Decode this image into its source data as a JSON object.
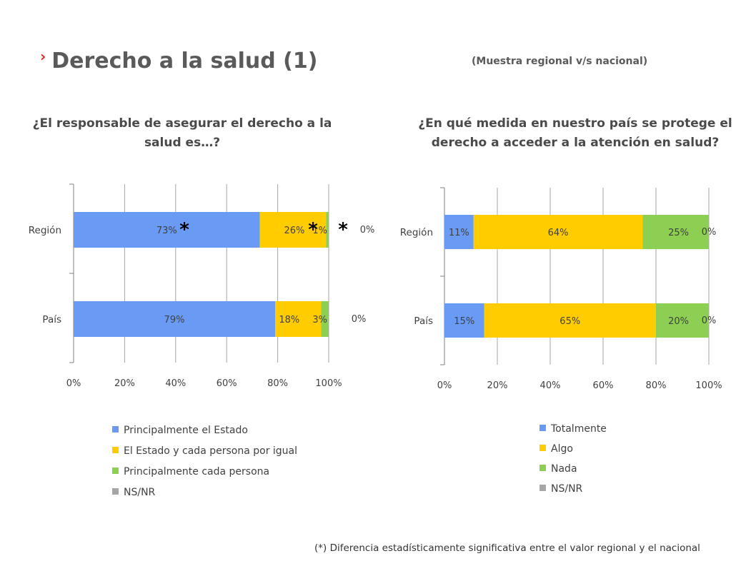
{
  "header": {
    "chevron": "›",
    "title": "Derecho a la salud (1)",
    "subtitle": "(Muestra regional v/s nacional)"
  },
  "footnote": "(*) Diferencia estadísticamente significativa entre el valor regional y el nacional",
  "colors": {
    "blue": "#6a9bf4",
    "yellow": "#ffcc00",
    "green": "#8ccf52",
    "gray": "#a6a6a6"
  },
  "chart_data": [
    {
      "type": "bar",
      "orientation": "horizontal",
      "stacked": true,
      "title": "¿El responsable de asegurar el derecho a la salud es…?",
      "categories": [
        "Región",
        "País"
      ],
      "series": [
        {
          "name": "Principalmente el Estado",
          "values": [
            73,
            79
          ],
          "labels": [
            "73%",
            "79%"
          ]
        },
        {
          "name": "El Estado y cada persona por igual",
          "values": [
            26,
            18
          ],
          "labels": [
            "26%",
            "18%"
          ]
        },
        {
          "name": "Principalmente cada persona",
          "values": [
            1,
            3
          ],
          "labels": [
            "1%",
            "3%"
          ]
        },
        {
          "name": "NS/NR",
          "values": [
            0,
            0
          ],
          "labels": [
            "0%",
            "0%"
          ]
        }
      ],
      "significance_markers": [
        [
          true,
          true,
          true,
          false
        ],
        [
          false,
          false,
          false,
          false
        ]
      ],
      "marker_symbol": "*",
      "xlim": [
        0,
        100
      ],
      "xticks": [
        "0%",
        "20%",
        "40%",
        "60%",
        "80%",
        "100%"
      ],
      "grid": true,
      "legend_position": "bottom"
    },
    {
      "type": "bar",
      "orientation": "horizontal",
      "stacked": true,
      "title": "¿En qué medida en nuestro país se protege el derecho a acceder a la atención en salud?",
      "categories": [
        "Región",
        "País"
      ],
      "series": [
        {
          "name": "Totalmente",
          "values": [
            11,
            15
          ],
          "labels": [
            "11%",
            "15%"
          ]
        },
        {
          "name": "Algo",
          "values": [
            64,
            65
          ],
          "labels": [
            "64%",
            "65%"
          ]
        },
        {
          "name": "Nada",
          "values": [
            25,
            20
          ],
          "labels": [
            "25%",
            "20%"
          ]
        },
        {
          "name": "NS/NR",
          "values": [
            0,
            0
          ],
          "labels": [
            "0%",
            "0%"
          ]
        }
      ],
      "xlim": [
        0,
        100
      ],
      "xticks": [
        "0%",
        "20%",
        "40%",
        "60%",
        "80%",
        "100%"
      ],
      "grid": true,
      "legend_position": "bottom"
    }
  ]
}
